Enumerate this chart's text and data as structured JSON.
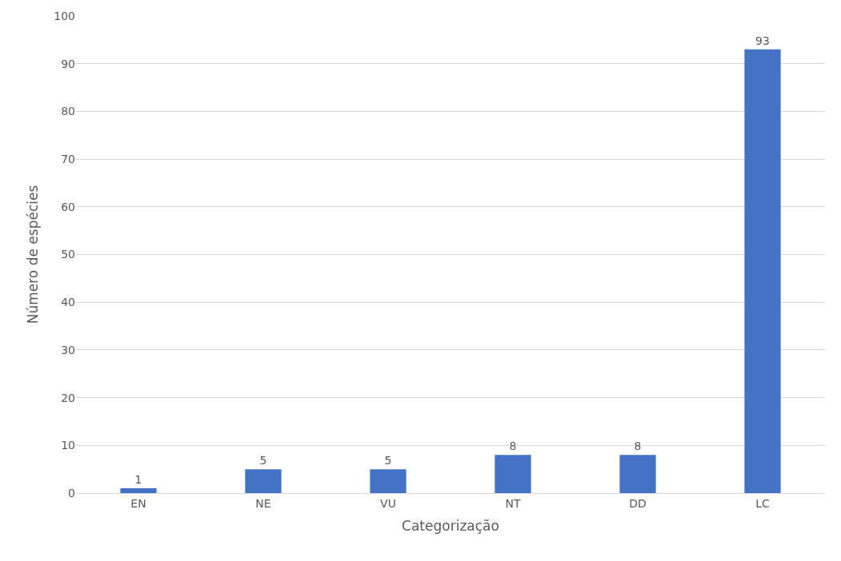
{
  "chart_data": {
    "type": "bar",
    "xlabel": "Categorização",
    "ylabel": "Número de espécies",
    "categories": [
      "EN",
      "NE",
      "VU",
      "NT",
      "DD",
      "LC"
    ],
    "values": [
      1,
      5,
      5,
      8,
      8,
      93
    ],
    "color": "#4472c4",
    "ylim": [
      0,
      100
    ],
    "yticks": [
      0,
      10,
      20,
      30,
      40,
      50,
      60,
      70,
      80,
      90,
      100
    ],
    "grid": "y",
    "data_labels": true
  }
}
